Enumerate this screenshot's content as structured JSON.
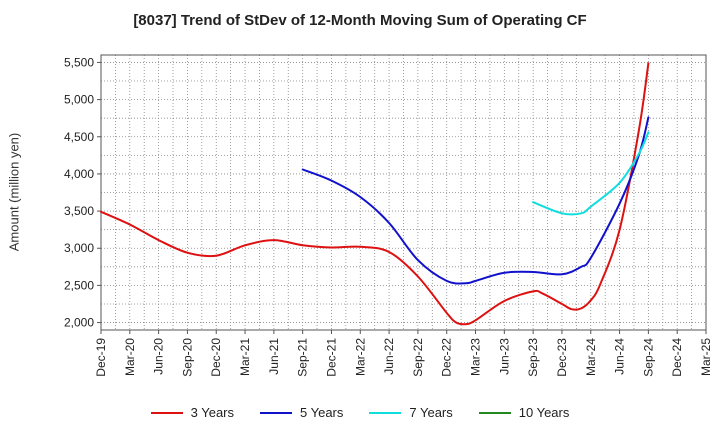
{
  "chart_data": {
    "type": "line",
    "title": "[8037]  Trend of StDev of 12-Month Moving Sum of Operating CF",
    "ylabel": "Amount (million yen)",
    "xlabel": "",
    "ylim": [
      1900,
      5600
    ],
    "yticks": [
      2000,
      2500,
      3000,
      3500,
      4000,
      4500,
      5000,
      5500
    ],
    "ytick_labels": [
      "2,000",
      "2,500",
      "3,000",
      "3,500",
      "4,000",
      "4,500",
      "5,000",
      "5,500"
    ],
    "x_categories": [
      "Dec-19",
      "Mar-20",
      "Jun-20",
      "Sep-20",
      "Dec-20",
      "Mar-21",
      "Jun-21",
      "Sep-21",
      "Dec-21",
      "Mar-22",
      "Jun-22",
      "Sep-22",
      "Dec-22",
      "Mar-23",
      "Jun-23",
      "Sep-23",
      "Dec-23",
      "Mar-24",
      "Jun-24",
      "Sep-24",
      "Dec-24",
      "Mar-25"
    ],
    "grid": true,
    "legend_position": "bottom",
    "series": [
      {
        "name": "3 Years",
        "color": "#dd1111",
        "points": [
          [
            "Dec-19",
            3490
          ],
          [
            "Mar-20",
            3320
          ],
          [
            "Jun-20",
            3110
          ],
          [
            "Sep-20",
            2940
          ],
          [
            "Dec-20",
            2900
          ],
          [
            "Mar-21",
            3040
          ],
          [
            "Jun-21",
            3110
          ],
          [
            "Sep-21",
            3040
          ],
          [
            "Dec-21",
            3010
          ],
          [
            "Mar-22",
            3020
          ],
          [
            "Jun-22",
            2950
          ],
          [
            "Sep-22",
            2620
          ],
          [
            "Dec-22",
            2130
          ],
          [
            "Jan-23",
            2000
          ],
          [
            "Feb-23",
            1980
          ],
          [
            "Mar-23",
            2030
          ],
          [
            "Jun-23",
            2290
          ],
          [
            "Sep-23",
            2420
          ],
          [
            "Oct-23",
            2390
          ],
          [
            "Dec-23",
            2250
          ],
          [
            "Jan-24",
            2180
          ],
          [
            "Feb-24",
            2190
          ],
          [
            "Mar-24",
            2300
          ],
          [
            "Apr-24",
            2520
          ],
          [
            "Jun-24",
            3250
          ],
          [
            "Aug-24",
            4580
          ],
          [
            "Sep-24",
            5490
          ]
        ]
      },
      {
        "name": "5 Years",
        "color": "#1111cc",
        "points": [
          [
            "Sep-21",
            4060
          ],
          [
            "Dec-21",
            3910
          ],
          [
            "Mar-22",
            3690
          ],
          [
            "Jun-22",
            3340
          ],
          [
            "Sep-22",
            2840
          ],
          [
            "Dec-22",
            2560
          ],
          [
            "Feb-23",
            2530
          ],
          [
            "Mar-23",
            2560
          ],
          [
            "Jun-23",
            2670
          ],
          [
            "Sep-23",
            2680
          ],
          [
            "Dec-23",
            2650
          ],
          [
            "Feb-24",
            2750
          ],
          [
            "Mar-24",
            2870
          ],
          [
            "Jun-24",
            3600
          ],
          [
            "Aug-24",
            4250
          ],
          [
            "Sep-24",
            4760
          ]
        ]
      },
      {
        "name": "7 Years",
        "color": "#11dddd",
        "points": [
          [
            "Sep-23",
            3620
          ],
          [
            "Dec-23",
            3470
          ],
          [
            "Feb-24",
            3470
          ],
          [
            "Mar-24",
            3560
          ],
          [
            "Jun-24",
            3880
          ],
          [
            "Aug-24",
            4270
          ],
          [
            "Sep-24",
            4560
          ]
        ]
      },
      {
        "name": "10 Years",
        "color": "#228822",
        "points": []
      }
    ]
  }
}
